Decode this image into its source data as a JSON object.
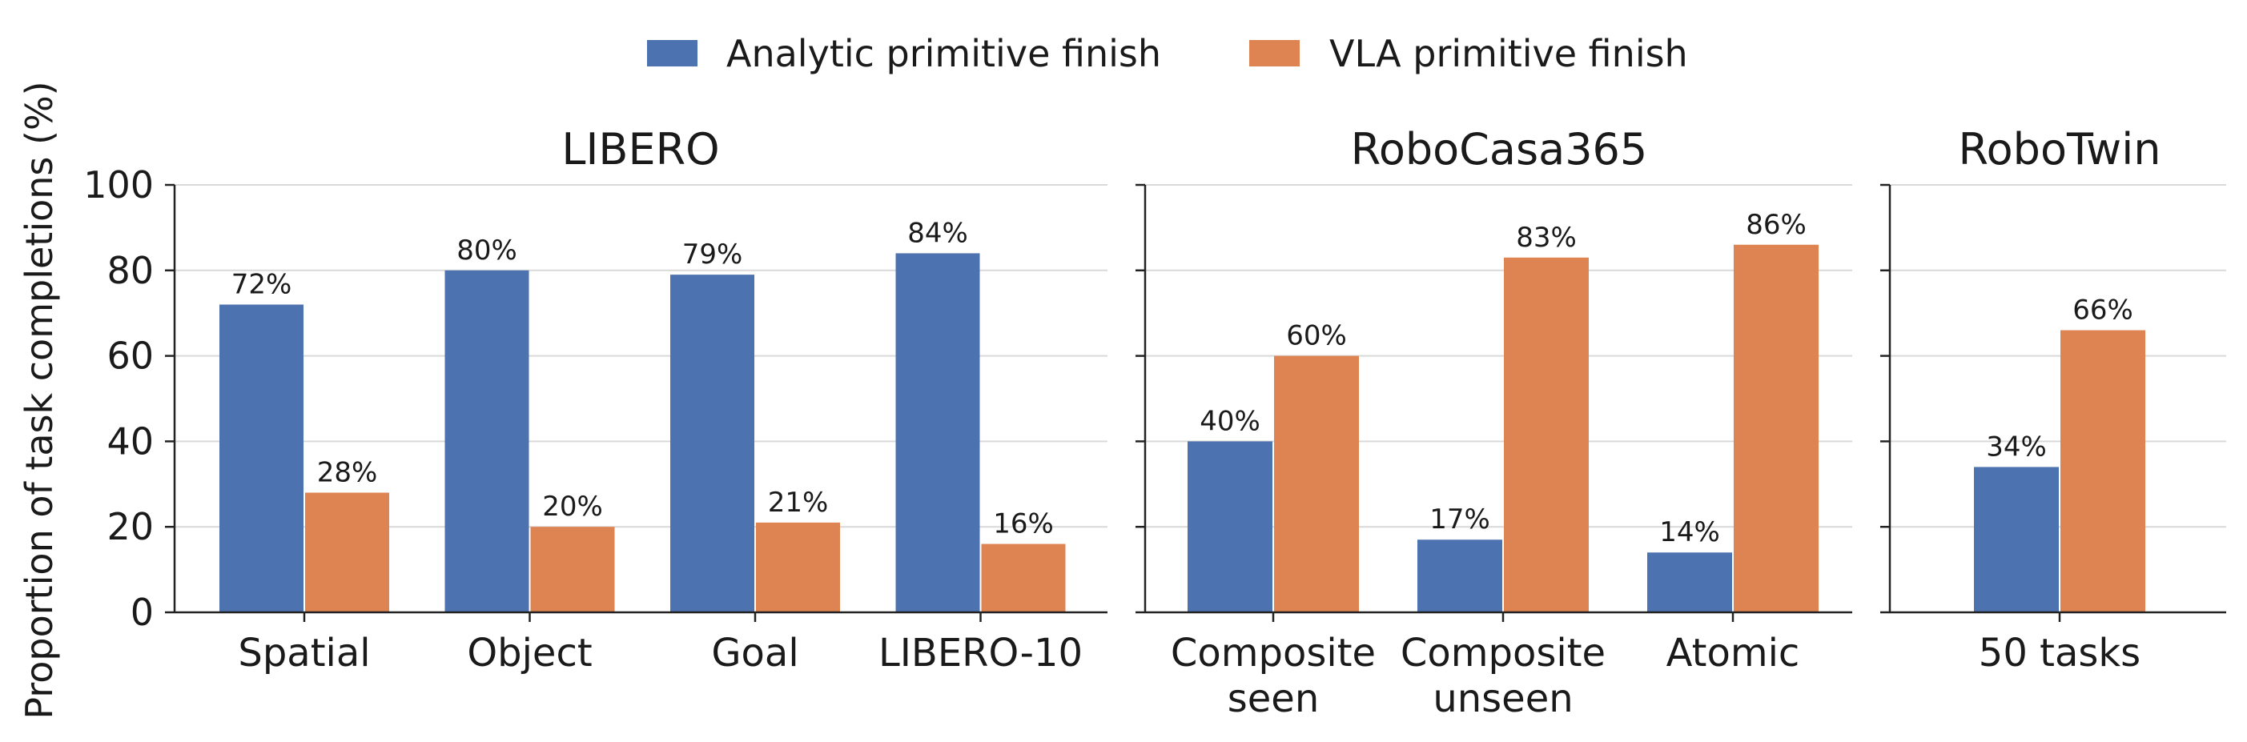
{
  "chart_data": {
    "type": "bar",
    "ylabel": "Proportion of task completions (%)",
    "ylim": [
      0,
      100
    ],
    "yticks": [
      "0",
      "20",
      "40",
      "60",
      "80",
      "100"
    ],
    "grid": true,
    "legend_placement": "top-center",
    "series": [
      {
        "name": "Analytic primitive finish",
        "color": "#4c72b0"
      },
      {
        "name": "VLA primitive finish",
        "color": "#dd8452"
      }
    ],
    "panels": [
      {
        "title": "LIBERO",
        "categories": [
          "Spatial",
          "Object",
          "Goal",
          "LIBERO-10"
        ],
        "values": [
          [
            72,
            80,
            79,
            84
          ],
          [
            28,
            20,
            21,
            16
          ]
        ],
        "labels": [
          [
            "72%",
            "80%",
            "79%",
            "84%"
          ],
          [
            "28%",
            "20%",
            "21%",
            "16%"
          ]
        ]
      },
      {
        "title": "RoboCasa365",
        "categories": [
          [
            "Composite",
            "seen"
          ],
          [
            "Composite",
            "unseen"
          ],
          [
            "Atomic"
          ]
        ],
        "values": [
          [
            40,
            17,
            14
          ],
          [
            60,
            83,
            86
          ]
        ],
        "labels": [
          [
            "40%",
            "17%",
            "14%"
          ],
          [
            "60%",
            "83%",
            "86%"
          ]
        ]
      },
      {
        "title": "RoboTwin",
        "categories": [
          "50 tasks"
        ],
        "values": [
          [
            34
          ],
          [
            66
          ]
        ],
        "labels": [
          [
            "34%"
          ],
          [
            "66%"
          ]
        ]
      }
    ]
  }
}
